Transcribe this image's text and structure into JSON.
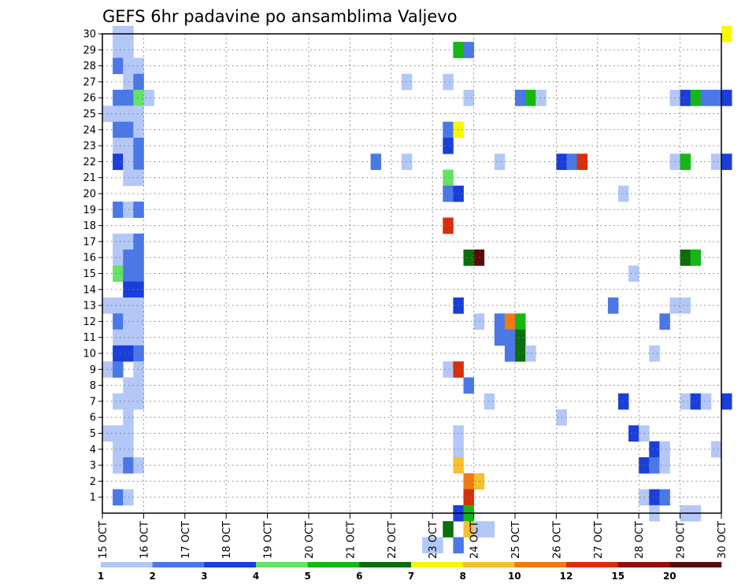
{
  "chart_data": {
    "type": "heatmap",
    "title": "GEFS 6hr padavine po ansamblima Valjevo",
    "x_ticks": [
      "15 OCT",
      "16 OCT",
      "17 OCT",
      "18 OCT",
      "19 OCT",
      "20 OCT",
      "21 OCT",
      "22 OCT",
      "23 OCT",
      "24 OCT",
      "25 OCT",
      "26 OCT",
      "27 OCT",
      "28 OCT",
      "29 OCT",
      "30 OCT"
    ],
    "y_ticks": [
      "1",
      "2",
      "3",
      "4",
      "5",
      "6",
      "7",
      "8",
      "9",
      "10",
      "11",
      "12",
      "13",
      "14",
      "15",
      "16",
      "17",
      "18",
      "19",
      "20",
      "21",
      "22",
      "23",
      "24",
      "25",
      "26",
      "27",
      "28",
      "29",
      "30"
    ],
    "ylim": [
      0,
      30
    ],
    "grid": true,
    "colorbar": {
      "position": "bottom",
      "levels": [
        "1",
        "2",
        "3",
        "4",
        "5",
        "6",
        "7",
        "8",
        "10",
        "12",
        "15",
        "20"
      ],
      "colors": [
        "#b4c8f8",
        "#4a78e6",
        "#1a3ed8",
        "#66e266",
        "#14b814",
        "#0a6e0a",
        "#f8f800",
        "#f8c030",
        "#f07a14",
        "#d82e0a",
        "#901010",
        "#5a0a0a"
      ]
    },
    "x_day_start": 15,
    "steps_per_day": 4,
    "cells": [
      [
        1,
        29,
        1
      ],
      [
        2,
        29,
        1
      ],
      [
        1,
        28,
        1
      ],
      [
        2,
        28,
        1
      ],
      [
        1,
        27,
        2
      ],
      [
        2,
        27,
        1
      ],
      [
        3,
        27,
        1
      ],
      [
        2,
        26,
        1
      ],
      [
        3,
        26,
        2
      ],
      [
        1,
        25,
        2
      ],
      [
        2,
        25,
        2
      ],
      [
        3,
        25,
        4
      ],
      [
        4,
        25,
        1
      ],
      [
        0,
        24,
        1
      ],
      [
        1,
        24,
        1
      ],
      [
        2,
        24,
        1
      ],
      [
        3,
        24,
        1
      ],
      [
        1,
        23,
        2
      ],
      [
        2,
        23,
        2
      ],
      [
        3,
        23,
        1
      ],
      [
        1,
        22,
        1
      ],
      [
        2,
        22,
        1
      ],
      [
        3,
        22,
        2
      ],
      [
        1,
        21,
        3
      ],
      [
        2,
        21,
        1
      ],
      [
        3,
        21,
        2
      ],
      [
        2,
        20,
        1
      ],
      [
        3,
        20,
        1
      ],
      [
        1,
        18,
        2
      ],
      [
        2,
        18,
        1
      ],
      [
        3,
        18,
        2
      ],
      [
        1,
        16,
        1
      ],
      [
        2,
        16,
        1
      ],
      [
        3,
        16,
        2
      ],
      [
        1,
        15,
        1
      ],
      [
        2,
        15,
        2
      ],
      [
        3,
        15,
        2
      ],
      [
        1,
        14,
        4
      ],
      [
        2,
        14,
        2
      ],
      [
        3,
        14,
        2
      ],
      [
        2,
        13,
        3
      ],
      [
        3,
        13,
        3
      ],
      [
        0,
        12,
        1
      ],
      [
        1,
        12,
        1
      ],
      [
        2,
        12,
        1
      ],
      [
        3,
        12,
        1
      ],
      [
        1,
        11,
        2
      ],
      [
        2,
        11,
        1
      ],
      [
        3,
        11,
        1
      ],
      [
        1,
        10,
        1
      ],
      [
        2,
        10,
        1
      ],
      [
        3,
        10,
        1
      ],
      [
        1,
        9,
        3
      ],
      [
        2,
        9,
        3
      ],
      [
        3,
        9,
        2
      ],
      [
        0,
        8,
        1
      ],
      [
        1,
        8,
        2
      ],
      [
        3,
        8,
        1
      ],
      [
        2,
        7,
        1
      ],
      [
        3,
        7,
        1
      ],
      [
        1,
        6,
        1
      ],
      [
        2,
        6,
        1
      ],
      [
        3,
        6,
        1
      ],
      [
        2,
        5,
        1
      ],
      [
        0,
        4,
        1
      ],
      [
        1,
        4,
        1
      ],
      [
        2,
        4,
        1
      ],
      [
        1,
        3,
        1
      ],
      [
        2,
        3,
        1
      ],
      [
        1,
        2,
        1
      ],
      [
        2,
        2,
        2
      ],
      [
        3,
        2,
        1
      ],
      [
        1,
        0,
        2
      ],
      [
        2,
        0,
        1
      ],
      [
        34,
        28,
        5
      ],
      [
        35,
        28,
        2
      ],
      [
        29,
        26,
        1
      ],
      [
        33,
        26,
        1
      ],
      [
        35,
        25,
        1
      ],
      [
        33,
        23,
        2
      ],
      [
        34,
        23,
        7
      ],
      [
        33,
        22,
        3
      ],
      [
        26,
        21,
        2
      ],
      [
        29,
        21,
        1
      ],
      [
        38,
        21,
        1
      ],
      [
        33,
        20,
        4
      ],
      [
        33,
        19,
        2
      ],
      [
        34,
        19,
        3
      ],
      [
        33,
        17,
        10
      ],
      [
        35,
        15,
        6
      ],
      [
        36,
        15,
        12
      ],
      [
        34,
        12,
        3
      ],
      [
        36,
        11,
        1
      ],
      [
        38,
        11,
        2
      ],
      [
        39,
        11,
        9
      ],
      [
        40,
        11,
        5
      ],
      [
        38,
        10,
        2
      ],
      [
        39,
        10,
        2
      ],
      [
        40,
        10,
        6
      ],
      [
        39,
        9,
        2
      ],
      [
        40,
        9,
        6
      ],
      [
        41,
        9,
        1
      ],
      [
        33,
        8,
        1
      ],
      [
        34,
        8,
        10
      ],
      [
        35,
        7,
        2
      ],
      [
        37,
        6,
        1
      ],
      [
        34,
        4,
        1
      ],
      [
        34,
        3,
        1
      ],
      [
        34,
        2,
        8
      ],
      [
        35,
        1,
        9
      ],
      [
        36,
        1,
        8
      ],
      [
        35,
        0,
        10
      ],
      [
        34,
        -1,
        3
      ],
      [
        35,
        -1,
        5
      ],
      [
        33,
        -2,
        6
      ],
      [
        35,
        -2,
        8
      ],
      [
        36,
        -2,
        1
      ],
      [
        37,
        -2,
        1
      ],
      [
        31,
        -3,
        1
      ],
      [
        32,
        -3,
        1
      ],
      [
        34,
        -3,
        2
      ],
      [
        40,
        25,
        2
      ],
      [
        41,
        25,
        5
      ],
      [
        42,
        25,
        1
      ],
      [
        44,
        21,
        3
      ],
      [
        45,
        21,
        2
      ],
      [
        46,
        21,
        10
      ],
      [
        50,
        19,
        1
      ],
      [
        55,
        25,
        1
      ],
      [
        56,
        25,
        3
      ],
      [
        57,
        25,
        5
      ],
      [
        58,
        25,
        2
      ],
      [
        59,
        25,
        2
      ],
      [
        60,
        25,
        3
      ],
      [
        55,
        21,
        1
      ],
      [
        56,
        21,
        5
      ],
      [
        59,
        21,
        1
      ],
      [
        60,
        21,
        3
      ],
      [
        60,
        29,
        7
      ],
      [
        56,
        15,
        6
      ],
      [
        57,
        15,
        5
      ],
      [
        51,
        14,
        1
      ],
      [
        49,
        12,
        2
      ],
      [
        55,
        12,
        1
      ],
      [
        56,
        12,
        1
      ],
      [
        54,
        11,
        2
      ],
      [
        53,
        9,
        1
      ],
      [
        50,
        6,
        3
      ],
      [
        56,
        6,
        1
      ],
      [
        57,
        6,
        3
      ],
      [
        58,
        6,
        1
      ],
      [
        60,
        6,
        3
      ],
      [
        44,
        5,
        1
      ],
      [
        51,
        4,
        3
      ],
      [
        52,
        4,
        1
      ],
      [
        53,
        3,
        3
      ],
      [
        54,
        3,
        1
      ],
      [
        59,
        3,
        1
      ],
      [
        52,
        2,
        3
      ],
      [
        53,
        2,
        2
      ],
      [
        54,
        2,
        1
      ],
      [
        52,
        0,
        1
      ],
      [
        53,
        0,
        3
      ],
      [
        54,
        0,
        2
      ],
      [
        53,
        -1,
        1
      ],
      [
        56,
        -1,
        1
      ],
      [
        57,
        -1,
        1
      ]
    ]
  }
}
